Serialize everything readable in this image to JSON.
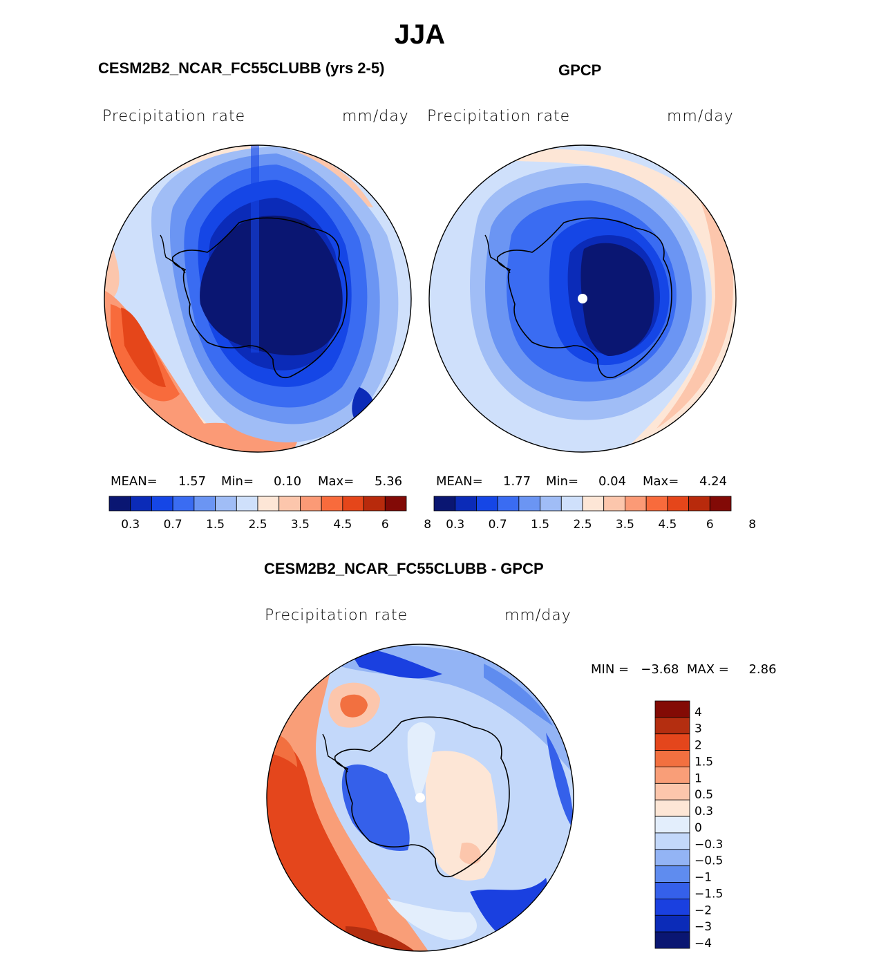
{
  "main_title": "JJA",
  "palette": {
    "seq": [
      "#0a1672",
      "#0b2bb8",
      "#1546e6",
      "#3a6cf2",
      "#6b95f3",
      "#a0bdf6",
      "#cfe0fb",
      "#fde6d6",
      "#fcc6ac",
      "#fb9a76",
      "#f86b3c",
      "#e5461a",
      "#b82a0c",
      "#820a06"
    ],
    "diff": [
      "#0a1672",
      "#0b2bb8",
      "#1a40e0",
      "#3560ea",
      "#5f8cef",
      "#93b4f5",
      "#c3d8fa",
      "#e3eefc",
      "#fde6d6",
      "#fcc6ac",
      "#f99e78",
      "#f27040",
      "#e4461c",
      "#b42e10",
      "#830b05"
    ],
    "coast": "#000000",
    "pole_marker": "#ffffff"
  },
  "panels": [
    {
      "id": "model",
      "title": "CESM2B2_NCAR_FC55CLUBB (yrs 2-5)",
      "variable": "Precipitation  rate",
      "units": "mm/day",
      "stats": {
        "mean_label": "MEAN=",
        "mean": "1.57",
        "min_label": "Min=",
        "min": "0.10",
        "max_label": "Max=",
        "max": "5.36"
      },
      "colorbar_ticks": [
        "0.3",
        "0.7",
        "1.5",
        "2.5",
        "3.5",
        "4.5",
        "6",
        "8"
      ]
    },
    {
      "id": "obs",
      "title": "GPCP",
      "variable": "Precipitation  rate",
      "units": "mm/day",
      "stats": {
        "mean_label": "MEAN=",
        "mean": "1.77",
        "min_label": "Min=",
        "min": "0.04",
        "max_label": "Max=",
        "max": "4.24"
      },
      "colorbar_ticks": [
        "0.3",
        "0.7",
        "1.5",
        "2.5",
        "3.5",
        "4.5",
        "6",
        "8"
      ]
    },
    {
      "id": "diff",
      "title": "CESM2B2_NCAR_FC55CLUBB - GPCP",
      "variable": "Precipitation  rate",
      "units": "mm/day",
      "minmax_label": "MIN =   −3.68  MAX =     2.86",
      "colorbar_ticks": [
        "4",
        "3",
        "2",
        "1.5",
        "1",
        "0.5",
        "0.3",
        "0",
        "−0.3",
        "−0.5",
        "−1",
        "−1.5",
        "−2",
        "−3",
        "−4"
      ]
    }
  ]
}
